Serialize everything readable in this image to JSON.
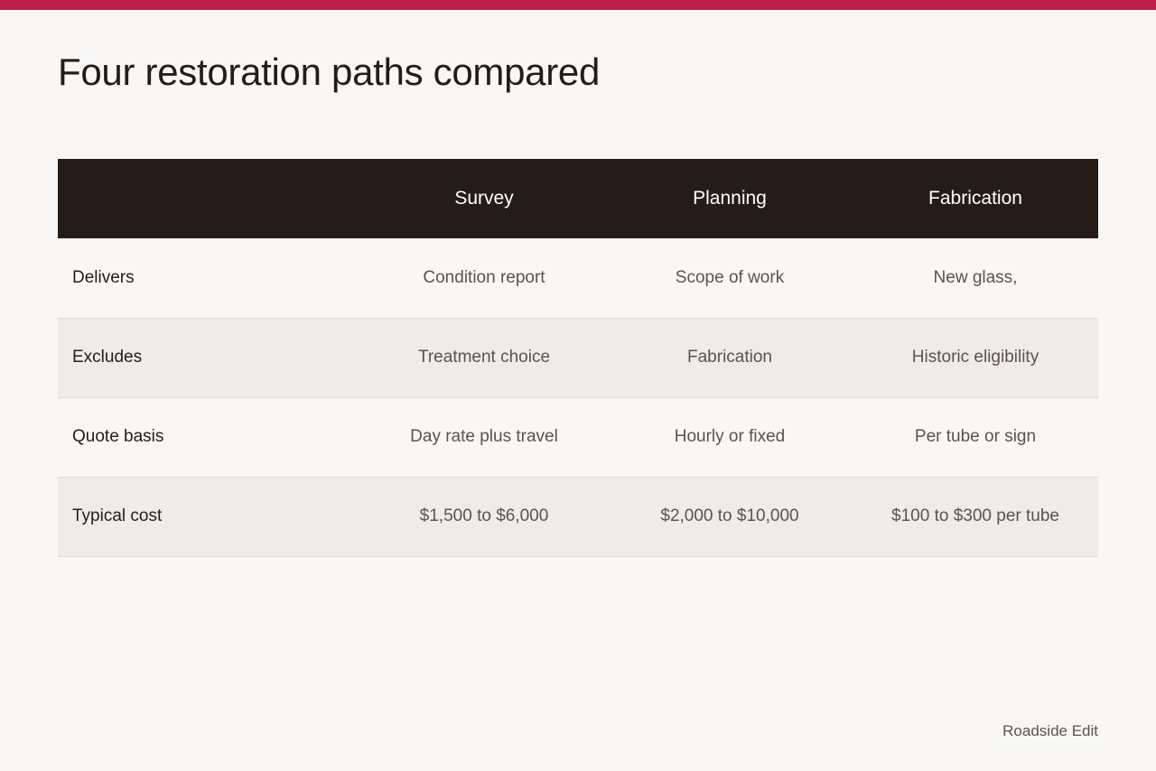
{
  "page": {
    "title": "Four restoration paths compared",
    "footer": "Roadside Edit",
    "accent_color": "#be1e4b",
    "header_bg_color": "#251c18"
  },
  "table": {
    "columns": [
      "",
      "Survey",
      "Planning",
      "Fabrication"
    ],
    "rows": [
      {
        "label": "Delivers",
        "cells": [
          "Condition report",
          "Scope of work",
          "New glass,"
        ]
      },
      {
        "label": "Excludes",
        "cells": [
          "Treatment choice",
          "Fabrication",
          "Historic eligibility"
        ]
      },
      {
        "label": "Quote basis",
        "cells": [
          "Day rate plus travel",
          "Hourly or fixed",
          "Per tube or sign"
        ]
      },
      {
        "label": "Typical cost",
        "cells": [
          "$1,500 to $6,000",
          "$2,000 to $10,000",
          "$100 to $300 per tube"
        ]
      }
    ]
  }
}
